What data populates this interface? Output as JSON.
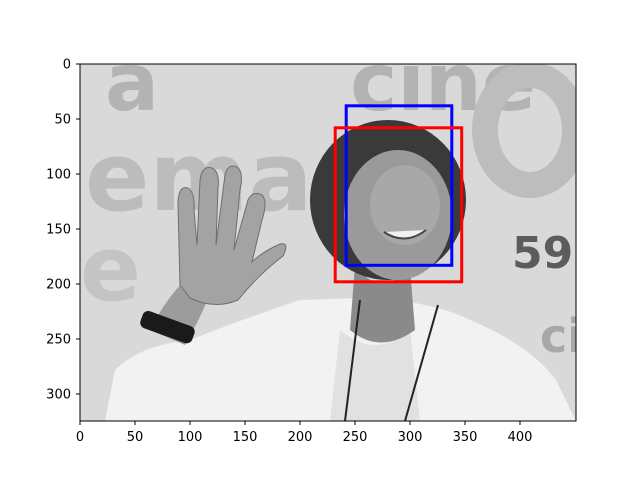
{
  "axes": {
    "x_ticks": [
      "0",
      "50",
      "100",
      "150",
      "200",
      "250",
      "300",
      "350",
      "400"
    ],
    "y_ticks": [
      "0",
      "50",
      "100",
      "150",
      "200",
      "250",
      "300"
    ]
  },
  "image": {
    "background_text": [
      "a",
      "cine",
      "ema",
      "59",
      "cin",
      "ci",
      "e"
    ],
    "tones": {
      "bg_light": "#d9d9d9",
      "bg_text": "#b3b3b3",
      "hair": "#3a3a3a",
      "skin": "#9a9a9a",
      "shirt": "#f2f2f2",
      "watch": "#1a1a1a"
    }
  },
  "boxes": [
    {
      "name": "blue",
      "color": "#0000ff",
      "x": 242,
      "y": 38,
      "x2": 338,
      "y2": 183
    },
    {
      "name": "red",
      "color": "#ff0000",
      "x": 232,
      "y": 58,
      "x2": 347,
      "y2": 198
    }
  ]
}
